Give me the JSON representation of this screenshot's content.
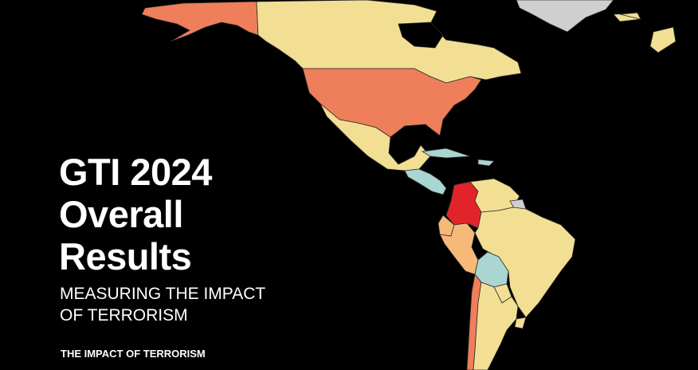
{
  "title": {
    "lines": [
      "GTI 2024",
      "Overall",
      "Results"
    ]
  },
  "subtitle": {
    "lines": [
      "MEASURING THE IMPACT",
      "OF TERRORISM"
    ]
  },
  "footer": {
    "text": "THE IMPACT OF TERRORISM"
  }
}
